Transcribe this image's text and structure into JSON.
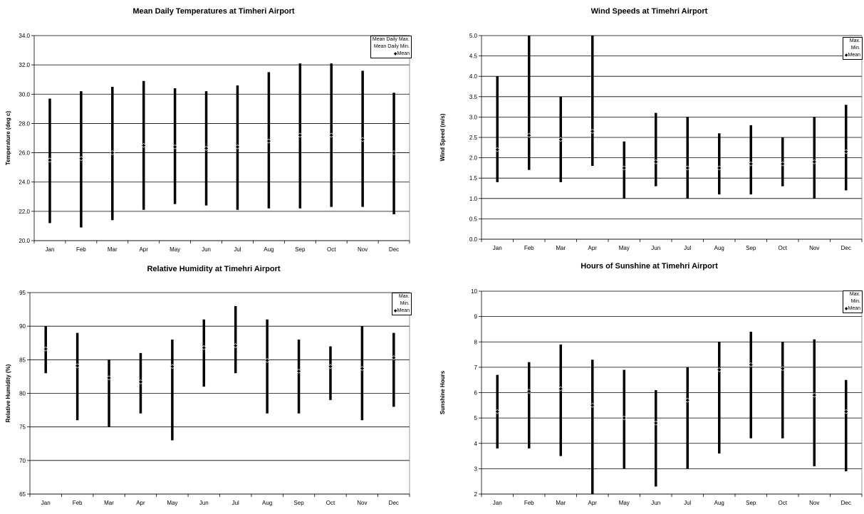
{
  "chart_data": [
    {
      "type": "range",
      "title": "Mean Daily Temperatures at Timheri Airport",
      "xlabel": "",
      "ylabel": "Temperature (deg c)",
      "ylim": [
        20,
        34
      ],
      "ystep": 2,
      "ydecimals": 1,
      "categories": [
        "Jan",
        "Feb",
        "Mar",
        "Apr",
        "May",
        "Jun",
        "Jul",
        "Aug",
        "Sep",
        "Oct",
        "Nov",
        "Dec"
      ],
      "series": [
        {
          "name": "Mean Daily Max.",
          "values": [
            29.7,
            30.2,
            30.5,
            30.9,
            30.4,
            30.2,
            30.6,
            31.5,
            32.1,
            32.1,
            31.6,
            30.1
          ]
        },
        {
          "name": "Mean Daily Min.",
          "values": [
            21.2,
            20.9,
            21.4,
            22.1,
            22.5,
            22.4,
            22.1,
            22.2,
            22.2,
            22.3,
            22.3,
            21.8
          ]
        },
        {
          "name": "Mean",
          "values": [
            25.5,
            25.6,
            26.0,
            26.5,
            26.4,
            26.3,
            26.4,
            26.8,
            27.2,
            27.2,
            26.9,
            26.0
          ]
        }
      ],
      "legend": "top-right",
      "grid": true
    },
    {
      "type": "range",
      "title": "Wind Speeds at Timehri Airport",
      "xlabel": "",
      "ylabel": "Wind Speed (m/s)",
      "ylim": [
        0,
        5
      ],
      "ystep": 0.5,
      "ydecimals": 1,
      "categories": [
        "Jan",
        "Feb",
        "Mar",
        "Apr",
        "May",
        "Jun",
        "Jul",
        "Aug",
        "Sep",
        "Oct",
        "Nov",
        "Dec"
      ],
      "series": [
        {
          "name": "Max.",
          "values": [
            4.0,
            5.0,
            3.5,
            5.0,
            2.4,
            3.1,
            3.0,
            2.6,
            2.8,
            2.5,
            3.0,
            3.3
          ]
        },
        {
          "name": "Min.",
          "values": [
            1.4,
            1.7,
            1.4,
            1.8,
            1.0,
            1.3,
            1.0,
            1.1,
            1.1,
            1.3,
            1.0,
            1.2
          ]
        },
        {
          "name": "Mean",
          "values": [
            2.2,
            2.55,
            2.45,
            2.65,
            1.75,
            1.9,
            1.75,
            1.75,
            1.85,
            1.85,
            1.9,
            2.15
          ]
        }
      ],
      "legend": "top-right",
      "grid": true
    },
    {
      "type": "range",
      "title": "Relative Humidity at Timehri Airport",
      "xlabel": "",
      "ylabel": "Relative Humidity (%)",
      "ylim": [
        65,
        95
      ],
      "ystep": 5,
      "ydecimals": 0,
      "categories": [
        "Jan",
        "Feb",
        "Mar",
        "Apr",
        "May",
        "Jun",
        "Jul",
        "Aug",
        "Sep",
        "Oct",
        "Nov",
        "Dec"
      ],
      "series": [
        {
          "name": "Max.",
          "values": [
            90,
            89,
            85,
            86,
            88,
            91,
            93,
            91,
            88,
            87,
            90,
            89
          ]
        },
        {
          "name": "Min.",
          "values": [
            83,
            76,
            75,
            77,
            73,
            81,
            83,
            77,
            77,
            79,
            76,
            78
          ]
        },
        {
          "name": "Mean",
          "values": [
            86.6,
            84.1,
            82.3,
            81.7,
            84.0,
            86.8,
            87.1,
            84.9,
            83.3,
            84.0,
            83.7,
            85.3
          ]
        }
      ],
      "legend": "top-right",
      "grid": true
    },
    {
      "type": "range",
      "title": "Hours of Sunshine at Timehri Airport",
      "xlabel": "",
      "ylabel": "Sunshine Hours",
      "ylim": [
        2,
        10
      ],
      "ystep": 1,
      "ydecimals": 0,
      "categories": [
        "Jan",
        "Feb",
        "Mar",
        "Apr",
        "May",
        "Jun",
        "Jul",
        "Aug",
        "Sep",
        "Oct",
        "Nov",
        "Dec"
      ],
      "series": [
        {
          "name": "Max.",
          "values": [
            6.7,
            7.2,
            7.9,
            7.3,
            6.9,
            6.1,
            7.0,
            8.0,
            8.4,
            8.0,
            8.1,
            6.5
          ]
        },
        {
          "name": "Min.",
          "values": [
            3.8,
            3.8,
            3.5,
            2.0,
            3.0,
            2.3,
            3.0,
            3.6,
            4.2,
            4.2,
            3.1,
            2.9
          ]
        },
        {
          "name": "Mean",
          "values": [
            5.25,
            6.05,
            6.15,
            5.5,
            5.0,
            4.8,
            5.7,
            6.9,
            7.1,
            6.95,
            5.9,
            5.25
          ]
        }
      ],
      "legend": "top-right",
      "grid": true
    }
  ]
}
